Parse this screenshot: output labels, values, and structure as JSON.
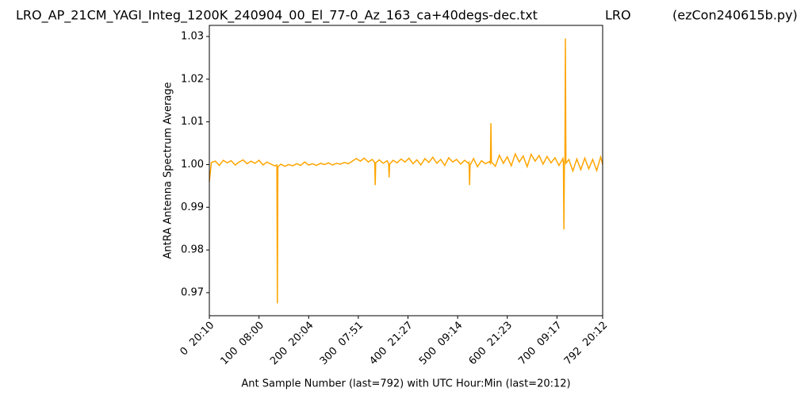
{
  "chart_data": {
    "type": "line",
    "title": "LRO_AP_21CM_YAGI_Integ_1200K_240904_00_El_77-0_Az_163_ca+40degs-dec.txt",
    "title_center": "LRO",
    "title_right": "(ezCon240615b.py)",
    "xlabel": "Ant Sample Number (last=792) with UTC Hour:Min (last=20:12)",
    "ylabel": "AntRA Antenna Spectrum Average",
    "xlim": [
      0,
      792
    ],
    "ylim": [
      0.9646,
      1.0326
    ],
    "xticks": [
      {
        "value": 0,
        "label": "0  20:10"
      },
      {
        "value": 100,
        "label": "100  08:00"
      },
      {
        "value": 200,
        "label": "200  20:04"
      },
      {
        "value": 300,
        "label": "300  07:51"
      },
      {
        "value": 400,
        "label": "400  21:27"
      },
      {
        "value": 500,
        "label": "500  09:14"
      },
      {
        "value": 600,
        "label": "600  21:23"
      },
      {
        "value": 700,
        "label": "700  09:17"
      },
      {
        "value": 792,
        "label": "792  20:12"
      }
    ],
    "yticks": [
      0.97,
      0.98,
      0.99,
      {
        "value": 1,
        "label": "1.00"
      },
      1.01,
      1.02,
      1.03
    ],
    "x": [
      0,
      4,
      12,
      20,
      28,
      36,
      44,
      52,
      60,
      68,
      76,
      84,
      92,
      100,
      108,
      116,
      124,
      132,
      136,
      137,
      138,
      144,
      152,
      160,
      168,
      176,
      184,
      192,
      200,
      208,
      216,
      224,
      232,
      240,
      248,
      256,
      264,
      272,
      280,
      288,
      296,
      304,
      312,
      320,
      328,
      333,
      334,
      335,
      342,
      350,
      358,
      361,
      362,
      363,
      370,
      378,
      386,
      394,
      402,
      410,
      418,
      426,
      434,
      442,
      450,
      458,
      466,
      474,
      482,
      490,
      498,
      506,
      514,
      522,
      523,
      524,
      525,
      532,
      540,
      548,
      556,
      564,
      566,
      567,
      568,
      576,
      584,
      592,
      600,
      608,
      616,
      624,
      632,
      640,
      648,
      656,
      664,
      672,
      680,
      688,
      696,
      704,
      712,
      713,
      714,
      715,
      716,
      717,
      718,
      724,
      732,
      740,
      748,
      756,
      764,
      772,
      780,
      788,
      792
    ],
    "series": [
      {
        "name": "AntRA",
        "color": "#ffa500",
        "values": [
          0.996,
          1.0005,
          1.0008,
          0.9998,
          1.001,
          1.0004,
          1.0009,
          0.9999,
          1.0006,
          1.0011,
          1.0002,
          1.0008,
          1.0003,
          1.001,
          0.9999,
          1.0006,
          1.0001,
          0.9997,
          0.9999,
          0.9675,
          0.9995,
          1.0001,
          0.9996,
          1.0,
          0.9997,
          1.0002,
          0.9998,
          1.0006,
          0.9999,
          1.0002,
          0.9998,
          1.0003,
          1.0,
          1.0004,
          0.9999,
          1.0003,
          1.0001,
          1.0005,
          1.0002,
          1.0008,
          1.0014,
          1.0008,
          1.0015,
          1.0006,
          1.0012,
          1.0005,
          0.9952,
          1.0004,
          1.0011,
          1.0003,
          1.0009,
          1.0002,
          0.997,
          1.0001,
          1.001,
          1.0004,
          1.0013,
          1.0006,
          1.0015,
          1.0002,
          1.0011,
          0.9999,
          1.0014,
          1.0005,
          1.0017,
          1.0003,
          1.0012,
          0.9998,
          1.0016,
          1.0006,
          1.0012,
          1.0001,
          1.001,
          1.0003,
          1.0005,
          0.9952,
          0.9998,
          1.0014,
          0.9995,
          1.0009,
          1.0002,
          1.0007,
          1.0003,
          1.0097,
          1.0006,
          0.9996,
          1.0022,
          1.0003,
          1.0018,
          0.9997,
          1.0025,
          1.0006,
          1.002,
          0.9995,
          1.0024,
          1.0008,
          1.0021,
          1.0001,
          1.0019,
          1.0004,
          1.0016,
          0.9998,
          1.0014,
          1.0002,
          0.9848,
          1.0006,
          1.001,
          1.0295,
          1.0003,
          1.0012,
          0.9985,
          1.0013,
          0.9988,
          1.0015,
          0.999,
          1.0012,
          0.9986,
          1.0018,
          1.0
        ]
      }
    ]
  }
}
